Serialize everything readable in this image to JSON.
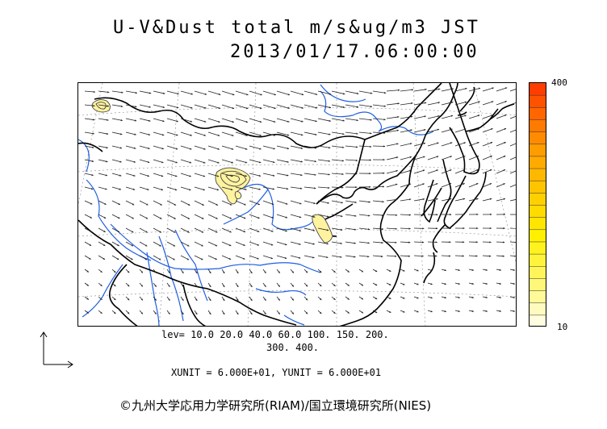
{
  "title": {
    "line1": "U-V&Dust total m/s&ug/m3 JST",
    "line2": "2013/01/17.06:00:00"
  },
  "colorbar": {
    "max_label": "400",
    "min_label": "10",
    "colors": [
      "#fffde0",
      "#fffbbf",
      "#fff99a",
      "#fff77a",
      "#fff55a",
      "#fff43b",
      "#fff21e",
      "#fff000",
      "#ffe600",
      "#ffdb00",
      "#ffd000",
      "#ffc400",
      "#ffb800",
      "#ffaa00",
      "#ff9c00",
      "#ff8c00",
      "#ff7a00",
      "#ff6600",
      "#ff5200",
      "#ff3d00"
    ]
  },
  "contour_levels": {
    "line1": "lev= 10.0 20.0 40.0 60.0 100. 150. 200.",
    "line2": "300. 400."
  },
  "units_text": "XUNIT = 6.000E+01, YUNIT = 6.000E+01",
  "copyright": "©九州大学応用力学研究所(RIAM)/国立環境研究所(NIES)",
  "map": {
    "coast_color": "#000000",
    "river_color": "#1f5fe0",
    "dust_fill": "#fff3a0",
    "dust_outline": "#444444",
    "vector_color": "#222222"
  }
}
